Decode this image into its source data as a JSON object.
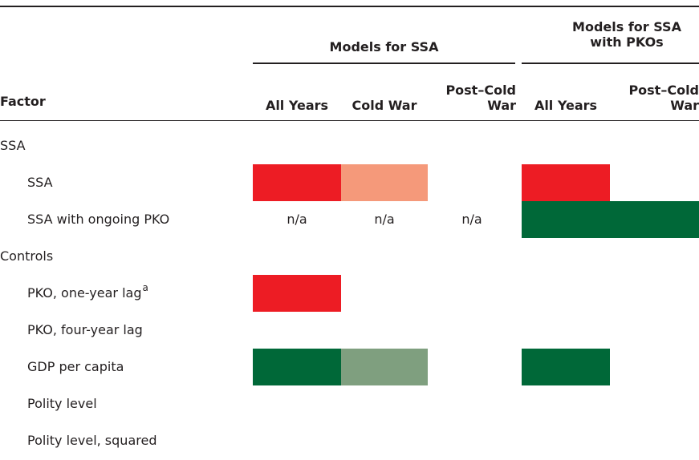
{
  "header": {
    "factor": "Factor",
    "groups": [
      "Models for SSA",
      "Models for SSA with PKOs"
    ],
    "columns": [
      "All Years",
      "Cold War",
      "Post–Cold War",
      "All Years",
      "Post–Cold War"
    ]
  },
  "rows": [
    {
      "label": "SSA"
    },
    {
      "label": "SSA",
      "indent": true,
      "cells": [
        null,
        null,
        null,
        null,
        null
      ],
      "fills": [
        "#ed1c24",
        "#f5997a",
        null,
        "#ed1c24",
        null
      ]
    },
    {
      "label": "SSA with ongoing PKO",
      "indent": true,
      "cells": [
        "n/a",
        "n/a",
        "n/a",
        null,
        null
      ],
      "fills": [
        null,
        null,
        null,
        "#006838",
        "#006838"
      ]
    },
    {
      "label": "Controls"
    },
    {
      "label": "PKO, one-year lag",
      "note": "a",
      "indent": true,
      "cells": [
        null,
        null,
        null,
        null,
        null
      ],
      "fills": [
        "#ed1c24",
        null,
        null,
        null,
        null
      ]
    },
    {
      "label": "PKO, four-year lag",
      "indent": true,
      "cells": [
        null,
        null,
        null,
        null,
        null
      ],
      "fills": [
        null,
        null,
        null,
        null,
        null
      ]
    },
    {
      "label": "GDP per capita",
      "indent": true,
      "cells": [
        null,
        null,
        null,
        null,
        null
      ],
      "fills": [
        "#006838",
        "#7f9f7f",
        null,
        "#006838",
        null
      ]
    },
    {
      "label": "Polity level",
      "indent": true,
      "cells": [
        null,
        null,
        null,
        null,
        null
      ],
      "fills": [
        null,
        null,
        null,
        null,
        null
      ]
    },
    {
      "label": "Polity level, squared",
      "indent": true,
      "cells": [
        null,
        null,
        null,
        null,
        null
      ],
      "fills": [
        null,
        null,
        null,
        null,
        null
      ]
    }
  ]
}
